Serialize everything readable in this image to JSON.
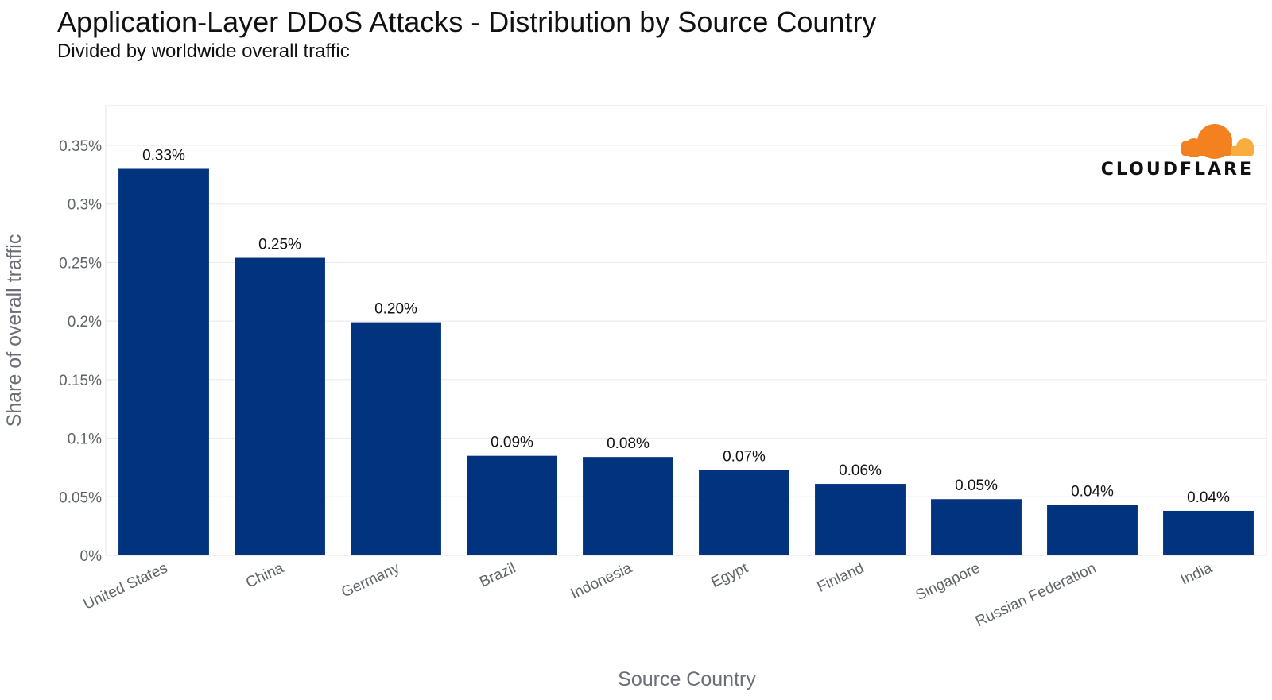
{
  "logo": {
    "text": "CLOUDFLARE",
    "colors": {
      "primary": "#f48120",
      "secondary": "#faad3f"
    }
  },
  "chart_data": {
    "type": "bar",
    "title": "Application-Layer DDoS Attacks - Distribution by Source Country",
    "subtitle": "Divided by worldwide overall traffic",
    "xlabel": "Source Country",
    "ylabel": "Share of overall traffic",
    "categories": [
      "United States",
      "China",
      "Germany",
      "Brazil",
      "Indonesia",
      "Egypt",
      "Finland",
      "Singapore",
      "Russian Federation",
      "India"
    ],
    "values": [
      0.33,
      0.254,
      0.199,
      0.085,
      0.084,
      0.073,
      0.061,
      0.048,
      0.043,
      0.038
    ],
    "data_labels": [
      "0.33%",
      "0.25%",
      "0.20%",
      "0.09%",
      "0.08%",
      "0.07%",
      "0.06%",
      "0.05%",
      "0.04%",
      "0.04%"
    ],
    "ylim": [
      0,
      0.35
    ],
    "yticks": [
      0,
      0.05,
      0.1,
      0.15,
      0.2,
      0.25,
      0.3,
      0.35
    ],
    "ytick_labels": [
      "0%",
      "0.05%",
      "0.1%",
      "0.15%",
      "0.2%",
      "0.25%",
      "0.3%",
      "0.35%"
    ],
    "bar_color": "#02337f",
    "grid": true
  }
}
